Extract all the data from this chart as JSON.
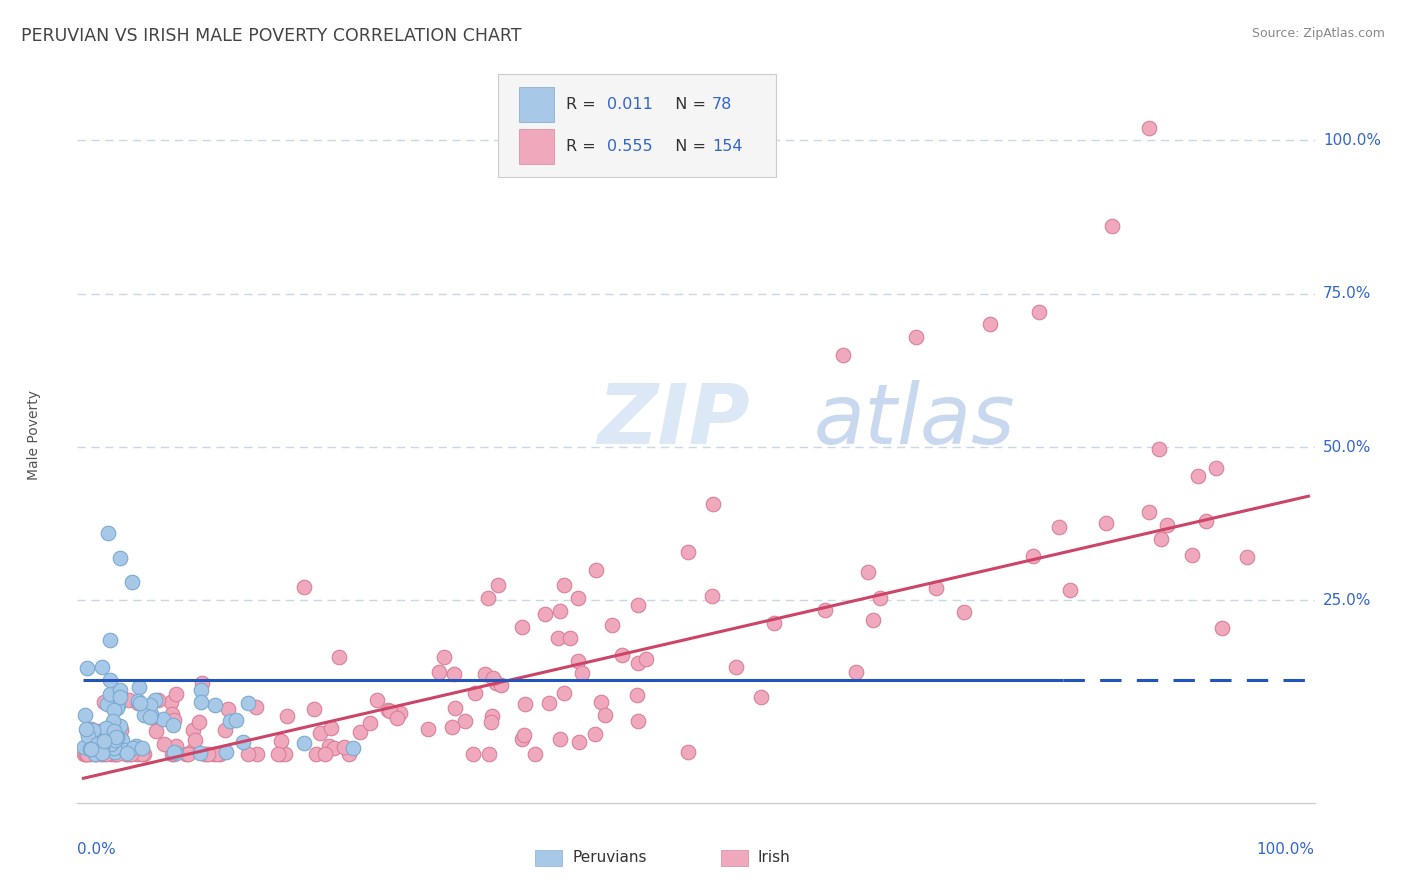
{
  "title": "PERUVIAN VS IRISH MALE POVERTY CORRELATION CHART",
  "source": "Source: ZipAtlas.com",
  "ylabel": "Male Poverty",
  "peruvian_color": "#a8c8e8",
  "peruvian_edge_color": "#7aaad0",
  "irish_color": "#f0a8bc",
  "irish_edge_color": "#d88099",
  "peruvian_line_color": "#2255bb",
  "irish_line_color": "#cc4466",
  "legend_text_color": "#3366cc",
  "title_color": "#444444",
  "source_color": "#888888",
  "background_color": "#ffffff",
  "grid_color": "#c8d8ea",
  "axis_color": "#cccccc",
  "peruvian_R": 0.011,
  "peruvian_N": 78,
  "irish_R": 0.555,
  "irish_N": 154,
  "watermark_color": "#dce8f5",
  "watermark_color2": "#c8d8ee"
}
